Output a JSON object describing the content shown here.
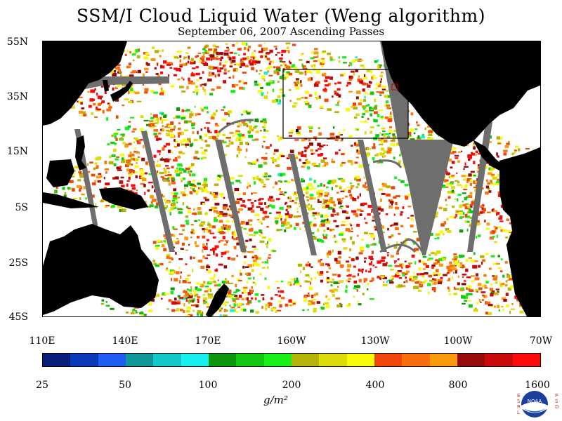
{
  "title": "SSM/I Cloud Liquid Water (Weng algorithm)",
  "subtitle": "September 06, 2007  Ascending Passes",
  "y_axis_labels": [
    "55N",
    "35N",
    "15N",
    "5S",
    "25S",
    "45S"
  ],
  "x_axis_labels": [
    "110E",
    "140E",
    "170E",
    "160W",
    "130W",
    "100W",
    "70W"
  ],
  "colorbar": {
    "colors": [
      "#0a1f78",
      "#0b39b8",
      "#1e5cf2",
      "#0f9696",
      "#13c8c8",
      "#18f0f0",
      "#0b960b",
      "#13c813",
      "#18f018",
      "#b4b40b",
      "#dcdc0b",
      "#fafa0b",
      "#f0460b",
      "#fa6e0b",
      "#fa9b0b",
      "#960a0a",
      "#c80a0a",
      "#fa0a0a"
    ],
    "tick_labels": [
      "25",
      "50",
      "100",
      "200",
      "400",
      "800",
      "1600"
    ],
    "unit_label": "g/m²"
  },
  "logo": {
    "text": "NOAA",
    "left_letters": [
      "E",
      "S",
      "R",
      "L"
    ],
    "right_letters": [
      "P",
      "S",
      "D"
    ]
  },
  "map_colors": {
    "land": "#000000",
    "ocean_no_data": "#ffffff",
    "swath_gap": "#6e6e6e",
    "box_outline": "#000000",
    "small_box": "#cc0000"
  }
}
